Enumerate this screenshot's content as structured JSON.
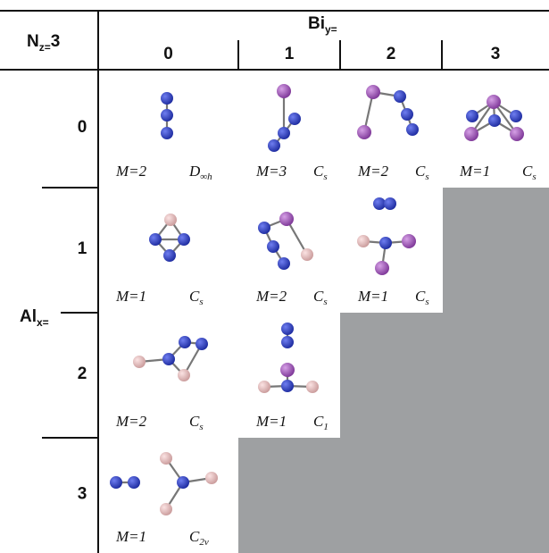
{
  "corner": {
    "symbol": "N",
    "subscript": "z=",
    "suffix": "3"
  },
  "column_header": {
    "symbol": "Bi",
    "subscript": "y="
  },
  "columns": [
    "0",
    "1",
    "2",
    "3"
  ],
  "row_header": {
    "symbol": "Al",
    "subscript": "x="
  },
  "rows": [
    "0",
    "1",
    "2",
    "3"
  ],
  "cells": [
    [
      {
        "multiplicity": "M=2",
        "group": {
          "symbol": "D",
          "subscript": "∞h"
        }
      },
      {
        "multiplicity": "M=3",
        "group": {
          "symbol": "C",
          "subscript": "s"
        }
      },
      {
        "multiplicity": "M=2",
        "group": {
          "symbol": "C",
          "subscript": "s"
        }
      },
      {
        "multiplicity": "M=1",
        "group": {
          "symbol": "C",
          "subscript": "s"
        }
      }
    ],
    [
      {
        "multiplicity": "M=1",
        "group": {
          "symbol": "C",
          "subscript": "s"
        }
      },
      {
        "multiplicity": "M=2",
        "group": {
          "symbol": "C",
          "subscript": "s"
        }
      },
      {
        "multiplicity": "M=1",
        "group": {
          "symbol": "C",
          "subscript": "s"
        }
      }
    ],
    [
      {
        "multiplicity": "M=2",
        "group": {
          "symbol": "C",
          "subscript": "s"
        }
      },
      {
        "multiplicity": "M=1",
        "group": {
          "symbol": "C",
          "subscript": "1"
        }
      }
    ],
    [
      {
        "multiplicity": "M=1",
        "group": {
          "symbol": "C",
          "subscript": "2v"
        }
      }
    ]
  ]
}
